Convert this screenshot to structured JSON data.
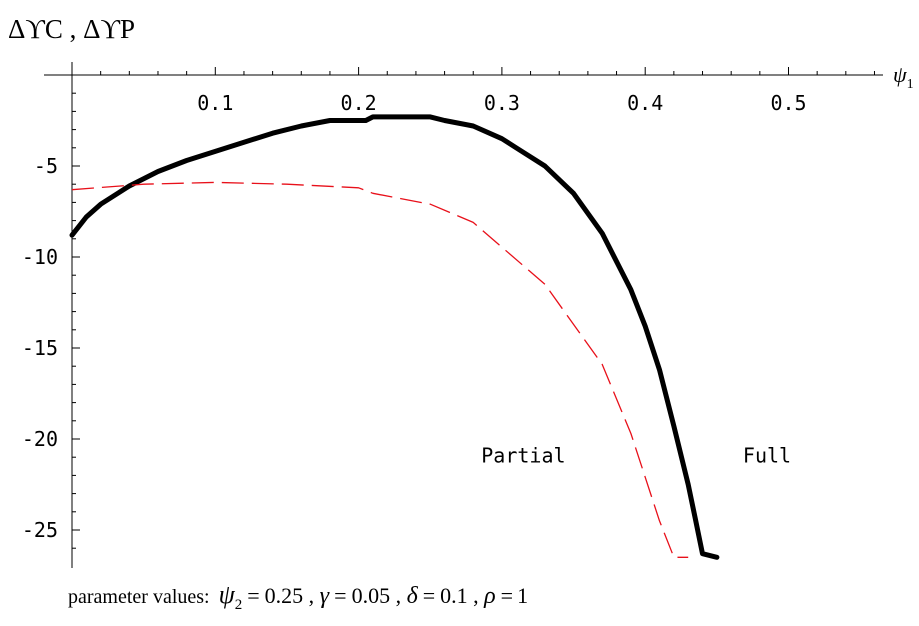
{
  "chart_data": {
    "type": "line",
    "title": "",
    "ylabel": {
      "base": "ΔϒC,ΔϒP",
      "parts": [
        "ΔϒC",
        ",",
        "ΔϒP"
      ]
    },
    "xlabel": {
      "base": "ψ",
      "sub": "1"
    },
    "xlim": [
      0,
      0.56
    ],
    "ylim": [
      -26.5,
      0
    ],
    "x_ticks": [
      0.1,
      0.2,
      0.3,
      0.4,
      0.5
    ],
    "x_tick_labels": [
      "0.1",
      "0.2",
      "0.3",
      "0.4",
      "0.5"
    ],
    "y_ticks": [
      -5,
      -10,
      -15,
      -20,
      -25
    ],
    "y_tick_labels": [
      "-5",
      "-10",
      "-15",
      "-20",
      "-25"
    ],
    "grid": false,
    "series": [
      {
        "name": "Full",
        "color": "#000000",
        "style": "solid",
        "x": [
          0,
          0.01,
          0.02,
          0.04,
          0.06,
          0.08,
          0.1,
          0.12,
          0.14,
          0.16,
          0.18,
          0.19,
          0.205,
          0.21,
          0.23,
          0.25,
          0.26,
          0.28,
          0.3,
          0.31,
          0.33,
          0.35,
          0.37,
          0.39,
          0.4,
          0.41,
          0.42,
          0.43,
          0.435,
          0.44,
          0.45
        ],
        "y": [
          -8.8,
          -7.8,
          -7.1,
          -6.1,
          -5.3,
          -4.7,
          -4.2,
          -3.7,
          -3.2,
          -2.8,
          -2.5,
          -2.5,
          -2.5,
          -2.3,
          -2.3,
          -2.3,
          -2.5,
          -2.8,
          -3.5,
          -4.0,
          -5.0,
          -6.5,
          -8.7,
          -11.8,
          -13.8,
          -16.2,
          -19.3,
          -22.5,
          -24.4,
          -26.3,
          -26.5
        ]
      },
      {
        "name": "Partial",
        "color": "#e8101a",
        "style": "dashed",
        "x": [
          0,
          0.05,
          0.1,
          0.15,
          0.2,
          0.21,
          0.25,
          0.28,
          0.33,
          0.37,
          0.39,
          0.41,
          0.42,
          0.43
        ],
        "y": [
          -6.3,
          -6.0,
          -5.9,
          -6.0,
          -6.2,
          -6.5,
          -7.1,
          -8.1,
          -11.5,
          -15.9,
          -19.7,
          -24.5,
          -26.5,
          -26.5
        ]
      }
    ],
    "annotations": [
      {
        "text": "Partial",
        "color": "#e8101a",
        "x": 0.315,
        "y": -21.3
      },
      {
        "text": "Full",
        "color": "#000000",
        "x": 0.485,
        "y": -21.3
      }
    ],
    "note": {
      "text": "parameter values: ψ2 = 0.25 , γ = 0.05 , δ = 0.1 , ρ = 1",
      "prefix": "parameter values:",
      "items": [
        {
          "sym": "ψ",
          "sub": "2",
          "val": "0.25"
        },
        {
          "sym": "γ",
          "sub": "",
          "val": "0.05"
        },
        {
          "sym": "δ",
          "sub": "",
          "val": "0.1"
        },
        {
          "sym": "ρ",
          "sub": "",
          "val": "1"
        }
      ]
    }
  }
}
